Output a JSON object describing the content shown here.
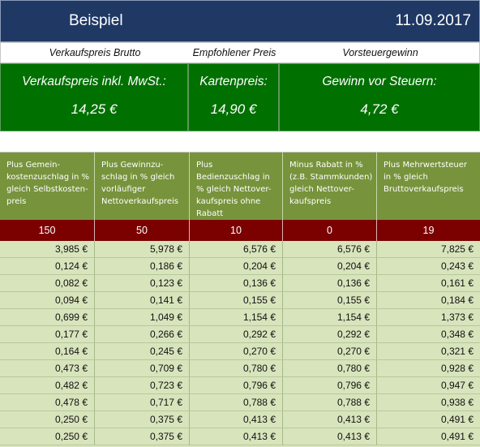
{
  "header": {
    "title": "Beispiel",
    "date": "11.09.2017"
  },
  "labels": [
    "Verkaufspreis Brutto",
    "Empfohlener Preis",
    "Vorsteuergewinn"
  ],
  "kpis": [
    {
      "label": "Verkaufspreis inkl. MwSt.:",
      "value": "14,25 €"
    },
    {
      "label": "Kartenpreis:",
      "value": "14,90 €"
    },
    {
      "label": "Gewinn vor Steuern:",
      "value": "4,72 €"
    }
  ],
  "table": {
    "columns": [
      "Plus Gemein-kostenzuschlag in % gleich Selbstkosten-preis",
      "Plus Gewinnzu-schlag in % gleich vorläufiger Nettoverkaufspreis",
      "Plus Bedienzuschlag in % gleich Nettover-kaufspreis ohne Rabatt",
      "Minus Rabatt in % (z.B. Stammkunden) gleich  Nettover-kaufspreis",
      "Plus Mehrwertsteuer in % gleich Bruttoverkaufspreis"
    ],
    "params": [
      "150",
      "50",
      "10",
      "0",
      "19"
    ],
    "rows": [
      [
        "3,985 €",
        "5,978 €",
        "6,576 €",
        "6,576 €",
        "7,825 €"
      ],
      [
        "0,124 €",
        "0,186 €",
        "0,204 €",
        "0,204 €",
        "0,243 €"
      ],
      [
        "0,082 €",
        "0,123 €",
        "0,136 €",
        "0,136 €",
        "0,161 €"
      ],
      [
        "0,094 €",
        "0,141 €",
        "0,155 €",
        "0,155 €",
        "0,184 €"
      ],
      [
        "0,699 €",
        "1,049 €",
        "1,154 €",
        "1,154 €",
        "1,373 €"
      ],
      [
        "0,177 €",
        "0,266 €",
        "0,292 €",
        "0,292 €",
        "0,348 €"
      ],
      [
        "0,164 €",
        "0,245 €",
        "0,270 €",
        "0,270 €",
        "0,321 €"
      ],
      [
        "0,473 €",
        "0,709 €",
        "0,780 €",
        "0,780 €",
        "0,928 €"
      ],
      [
        "0,482 €",
        "0,723 €",
        "0,796 €",
        "0,796 €",
        "0,947 €"
      ],
      [
        "0,478 €",
        "0,717 €",
        "0,788 €",
        "0,788 €",
        "0,938 €"
      ],
      [
        "0,250 €",
        "0,375 €",
        "0,413 €",
        "0,413 €",
        "0,491 €"
      ],
      [
        "0,250 €",
        "0,375 €",
        "0,413 €",
        "0,413 €",
        "0,491 €"
      ]
    ]
  },
  "colors": {
    "title_bg": "#1f3864",
    "kpi_bg": "#007000",
    "header_bg": "#77933c",
    "param_bg": "#7b0000",
    "data_bg": "#d8e4bc"
  }
}
